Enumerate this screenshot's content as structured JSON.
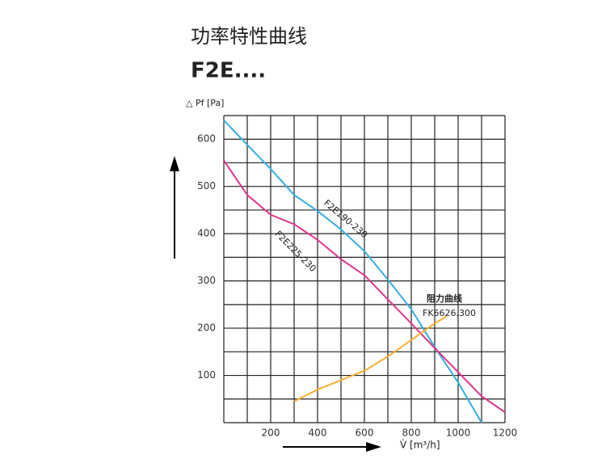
{
  "chart_data": {
    "type": "line",
    "title": "功率特性曲线",
    "subtitle": "F2E....",
    "y_label": "△ Pf [Pa]",
    "x_label": "V̇ [m³/h]",
    "xlim": [
      0,
      1200
    ],
    "ylim": [
      0,
      650
    ],
    "xticks": [
      200,
      400,
      600,
      800,
      1000,
      1200
    ],
    "yticks": [
      100,
      200,
      300,
      400,
      500,
      600
    ],
    "xgrid": [
      0,
      100,
      200,
      300,
      400,
      500,
      600,
      700,
      800,
      900,
      1000,
      1100,
      1200
    ],
    "ygrid": [
      0,
      50,
      100,
      150,
      200,
      250,
      300,
      350,
      400,
      450,
      500,
      550,
      600,
      650
    ],
    "grid": true,
    "series": [
      {
        "name": "F2E190-230",
        "color": "#35aee2",
        "x": [
          0,
          100,
          200,
          300,
          400,
          500,
          600,
          700,
          800,
          900,
          1000,
          1100
        ],
        "values": [
          640,
          588,
          537,
          482,
          448,
          409,
          363,
          303,
          240,
          160,
          85,
          0
        ]
      },
      {
        "name": "F2E225-230",
        "color": "#e2338c",
        "x": [
          0,
          100,
          200,
          300,
          400,
          500,
          600,
          700,
          800,
          900,
          1000,
          1100,
          1200
        ],
        "values": [
          555,
          482,
          440,
          420,
          387,
          346,
          312,
          261,
          210,
          158,
          107,
          56,
          22
        ]
      },
      {
        "name": "FK6626.300",
        "label": "阻力曲线",
        "color": "#f5b02e",
        "x": [
          300,
          400,
          500,
          600,
          700,
          800,
          900,
          950
        ],
        "values": [
          45,
          70,
          90,
          110,
          140,
          175,
          210,
          225
        ]
      }
    ]
  }
}
